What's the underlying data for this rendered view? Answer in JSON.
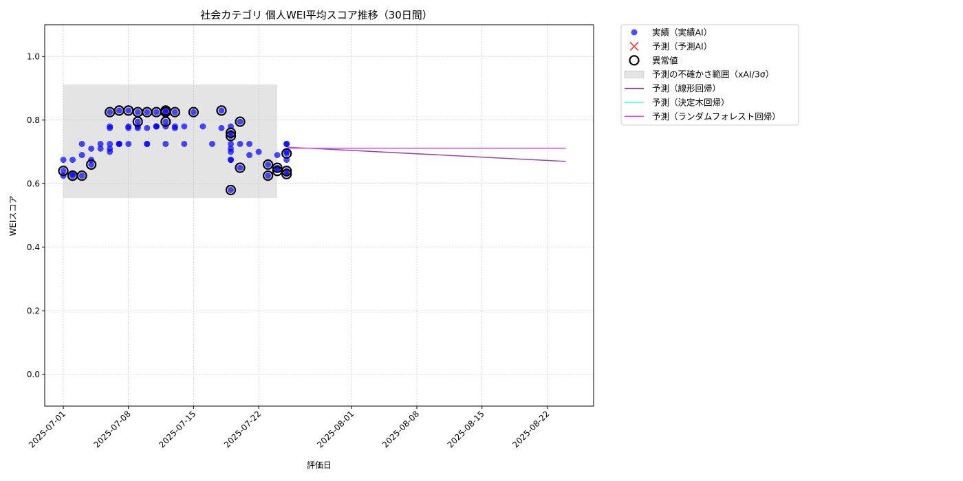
{
  "chart_data": {
    "type": "scatter",
    "title": "社会カテゴリ 個人WEI平均スコア推移（30日間）",
    "xlabel": "評価日",
    "ylabel": "WEIスコア",
    "xlim": [
      "2025-06-29",
      "2025-08-27"
    ],
    "ylim": [
      -0.1,
      1.1
    ],
    "grid": true,
    "legend_placement": "outside-top-right",
    "x_ticks": [
      "2025-07-01",
      "2025-07-08",
      "2025-07-15",
      "2025-07-22",
      "2025-08-01",
      "2025-08-08",
      "2025-08-15",
      "2025-08-22"
    ],
    "y_ticks": [
      0.0,
      0.2,
      0.4,
      0.6,
      0.8,
      1.0
    ],
    "y_tick_labels": [
      "0.0",
      "0.2",
      "0.4",
      "0.6",
      "0.8",
      "1.0"
    ],
    "uncertainty_band": {
      "name": "予測の不確かさ範囲（xAI/3σ）",
      "x_start": "2025-07-01",
      "x_end": "2025-07-24",
      "y_low": 0.555,
      "y_high": 0.912,
      "color": "#bbbbbb"
    },
    "series": [
      {
        "name": "実績（実績AI）",
        "kind": "scatter",
        "color": "#0000ff",
        "points": [
          [
            "2025-07-01",
            0.64
          ],
          [
            "2025-07-01",
            0.675
          ],
          [
            "2025-07-01",
            0.625
          ],
          [
            "2025-07-02",
            0.625
          ],
          [
            "2025-07-02",
            0.675
          ],
          [
            "2025-07-02",
            0.63
          ],
          [
            "2025-07-03",
            0.625
          ],
          [
            "2025-07-03",
            0.69
          ],
          [
            "2025-07-03",
            0.725
          ],
          [
            "2025-07-04",
            0.66
          ],
          [
            "2025-07-04",
            0.675
          ],
          [
            "2025-07-04",
            0.71
          ],
          [
            "2025-07-05",
            0.71
          ],
          [
            "2025-07-05",
            0.725
          ],
          [
            "2025-07-06",
            0.71
          ],
          [
            "2025-07-06",
            0.7
          ],
          [
            "2025-07-06",
            0.775
          ],
          [
            "2025-07-06",
            0.78
          ],
          [
            "2025-07-06",
            0.725
          ],
          [
            "2025-07-06",
            0.825
          ],
          [
            "2025-07-07",
            0.725
          ],
          [
            "2025-07-07",
            0.725
          ],
          [
            "2025-07-07",
            0.83
          ],
          [
            "2025-07-07",
            0.725
          ],
          [
            "2025-07-08",
            0.775
          ],
          [
            "2025-07-08",
            0.725
          ],
          [
            "2025-07-08",
            0.78
          ],
          [
            "2025-07-08",
            0.83
          ],
          [
            "2025-07-09",
            0.78
          ],
          [
            "2025-07-09",
            0.795
          ],
          [
            "2025-07-09",
            0.825
          ],
          [
            "2025-07-09",
            0.775
          ],
          [
            "2025-07-10",
            0.825
          ],
          [
            "2025-07-10",
            0.725
          ],
          [
            "2025-07-10",
            0.725
          ],
          [
            "2025-07-10",
            0.775
          ],
          [
            "2025-07-11",
            0.78
          ],
          [
            "2025-07-11",
            0.825
          ],
          [
            "2025-07-11",
            0.78
          ],
          [
            "2025-07-11",
            0.78
          ],
          [
            "2025-07-12",
            0.725
          ],
          [
            "2025-07-12",
            0.825
          ],
          [
            "2025-07-12",
            0.795
          ],
          [
            "2025-07-12",
            0.78
          ],
          [
            "2025-07-12",
            0.83
          ],
          [
            "2025-07-13",
            0.78
          ],
          [
            "2025-07-13",
            0.825
          ],
          [
            "2025-07-13",
            0.775
          ],
          [
            "2025-07-14",
            0.78
          ],
          [
            "2025-07-14",
            0.725
          ],
          [
            "2025-07-15",
            0.825
          ],
          [
            "2025-07-16",
            0.78
          ],
          [
            "2025-07-17",
            0.725
          ],
          [
            "2025-07-18",
            0.83
          ],
          [
            "2025-07-18",
            0.775
          ],
          [
            "2025-07-19",
            0.675
          ],
          [
            "2025-07-19",
            0.76
          ],
          [
            "2025-07-19",
            0.75
          ],
          [
            "2025-07-19",
            0.725
          ],
          [
            "2025-07-19",
            0.71
          ],
          [
            "2025-07-19",
            0.7
          ],
          [
            "2025-07-19",
            0.78
          ],
          [
            "2025-07-19",
            0.58
          ],
          [
            "2025-07-19",
            0.675
          ],
          [
            "2025-07-20",
            0.795
          ],
          [
            "2025-07-20",
            0.65
          ],
          [
            "2025-07-20",
            0.725
          ],
          [
            "2025-07-21",
            0.69
          ],
          [
            "2025-07-21",
            0.725
          ],
          [
            "2025-07-22",
            0.7
          ],
          [
            "2025-07-23",
            0.66
          ],
          [
            "2025-07-23",
            0.625
          ],
          [
            "2025-07-24",
            0.65
          ],
          [
            "2025-07-24",
            0.69
          ],
          [
            "2025-07-24",
            0.645
          ],
          [
            "2025-07-25",
            0.725
          ],
          [
            "2025-07-25",
            0.7
          ],
          [
            "2025-07-25",
            0.64
          ],
          [
            "2025-07-25",
            0.63
          ],
          [
            "2025-07-25",
            0.675
          ],
          [
            "2025-07-25",
            0.695
          ],
          [
            "2025-07-25",
            0.725
          ]
        ]
      },
      {
        "name": "予測（予測AI）",
        "kind": "marker-x",
        "color": "#ff3333",
        "points": []
      },
      {
        "name": "異常値",
        "kind": "outlier-ring",
        "color": "#000000",
        "points": [
          [
            "2025-07-01",
            0.64
          ],
          [
            "2025-07-02",
            0.625
          ],
          [
            "2025-07-02",
            0.625
          ],
          [
            "2025-07-03",
            0.625
          ],
          [
            "2025-07-04",
            0.66
          ],
          [
            "2025-07-06",
            0.825
          ],
          [
            "2025-07-07",
            0.83
          ],
          [
            "2025-07-08",
            0.83
          ],
          [
            "2025-07-09",
            0.795
          ],
          [
            "2025-07-09",
            0.825
          ],
          [
            "2025-07-10",
            0.825
          ],
          [
            "2025-07-11",
            0.825
          ],
          [
            "2025-07-12",
            0.825
          ],
          [
            "2025-07-12",
            0.795
          ],
          [
            "2025-07-12",
            0.83
          ],
          [
            "2025-07-13",
            0.825
          ],
          [
            "2025-07-15",
            0.825
          ],
          [
            "2025-07-18",
            0.83
          ],
          [
            "2025-07-19",
            0.76
          ],
          [
            "2025-07-19",
            0.75
          ],
          [
            "2025-07-19",
            0.58
          ],
          [
            "2025-07-20",
            0.795
          ],
          [
            "2025-07-20",
            0.65
          ],
          [
            "2025-07-23",
            0.66
          ],
          [
            "2025-07-23",
            0.625
          ],
          [
            "2025-07-24",
            0.65
          ],
          [
            "2025-07-24",
            0.64
          ],
          [
            "2025-07-25",
            0.64
          ],
          [
            "2025-07-25",
            0.63
          ],
          [
            "2025-07-25",
            0.695
          ]
        ]
      },
      {
        "name": "予測（線形回帰）",
        "kind": "line",
        "color": "#882299",
        "points": [
          [
            "2025-07-25",
            0.715
          ],
          [
            "2025-08-24",
            0.67
          ]
        ]
      },
      {
        "name": "予測（決定木回帰）",
        "kind": "line",
        "color": "#33ffff",
        "points": [
          [
            "2025-07-25",
            0.712
          ],
          [
            "2025-08-24",
            0.712
          ]
        ]
      },
      {
        "name": "予測（ランダムフォレスト回帰）",
        "kind": "line",
        "color": "#ff33ff",
        "points": [
          [
            "2025-07-25",
            0.711
          ],
          [
            "2025-08-24",
            0.711
          ]
        ]
      }
    ]
  }
}
